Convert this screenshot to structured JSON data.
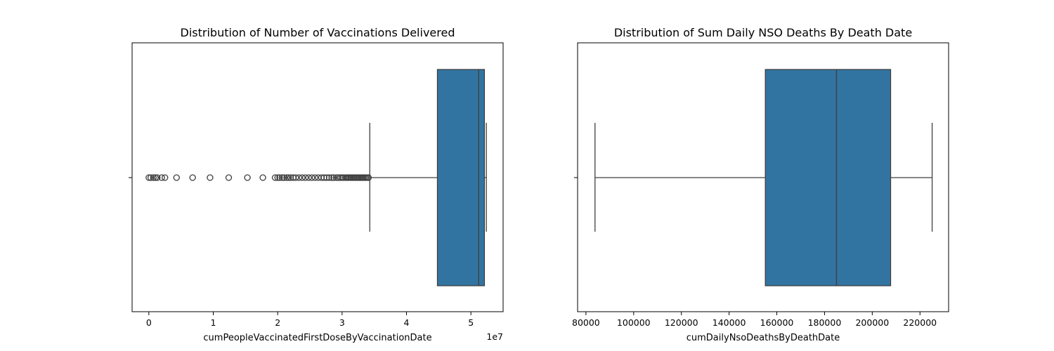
{
  "chart_data": [
    {
      "type": "box",
      "title": "Distribution of Number of Vaccinations Delivered",
      "xlabel": "cumPeopleVaccinatedFirstDoseByVaccinationDate",
      "ylabel": "",
      "orientation": "horizontal",
      "scale_exponent_label": "1e7",
      "xlim": [
        -0.26,
        5.5
      ],
      "x_ticks": [
        0,
        1,
        2,
        3,
        4,
        5
      ],
      "x_tick_labels": [
        "0",
        "1",
        "2",
        "3",
        "4",
        "5"
      ],
      "box": {
        "whisker_low": 3.43,
        "q1": 4.48,
        "median": 5.12,
        "q3": 5.21,
        "whisker_high": 5.24
      },
      "outliers": [
        0.0,
        0.03,
        0.07,
        0.1,
        0.13,
        0.2,
        0.25,
        0.43,
        0.68,
        0.95,
        1.24,
        1.53,
        1.77,
        1.96,
        2.0,
        2.03,
        2.07,
        2.1,
        2.14,
        2.17,
        2.2,
        2.24,
        2.28,
        2.33,
        2.38,
        2.43,
        2.48,
        2.53,
        2.58,
        2.63,
        2.68,
        2.72,
        2.76,
        2.8,
        2.84,
        2.87,
        2.91,
        2.94,
        2.97,
        3.0,
        3.02,
        3.05,
        3.07,
        3.09,
        3.11,
        3.13,
        3.15,
        3.17,
        3.19,
        3.21,
        3.23,
        3.25,
        3.27,
        3.29,
        3.31,
        3.33,
        3.35,
        3.37,
        3.39,
        3.41
      ],
      "colors": {
        "box_fill": "#3274a1",
        "line": "#3f3f3f"
      }
    },
    {
      "type": "box",
      "title": "Distribution of Sum Daily NSO Deaths By Death Date",
      "xlabel": "cumDailyNsoDeathsByDeathDate",
      "ylabel": "",
      "orientation": "horizontal",
      "xlim": [
        76500,
        232000
      ],
      "x_ticks": [
        80000,
        100000,
        120000,
        140000,
        160000,
        180000,
        200000,
        220000
      ],
      "x_tick_labels": [
        "80000",
        "100000",
        "120000",
        "140000",
        "160000",
        "180000",
        "200000",
        "220000"
      ],
      "box": {
        "whisker_low": 83800,
        "q1": 155200,
        "median": 185000,
        "q3": 207700,
        "whisker_high": 225100
      },
      "outliers": [],
      "colors": {
        "box_fill": "#3274a1",
        "line": "#3f3f3f"
      }
    }
  ]
}
